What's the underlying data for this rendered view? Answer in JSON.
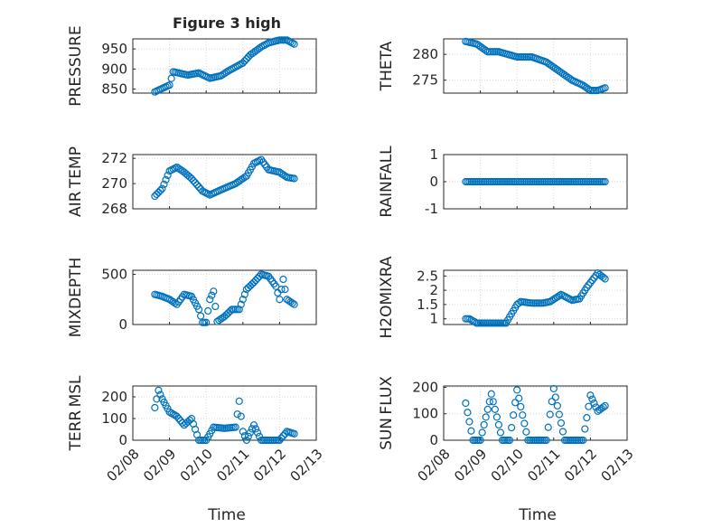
{
  "figure": {
    "title": "Figure 3 high",
    "xlabel": "Time"
  },
  "colors": {
    "marker": "#0072BD",
    "axis": "#262626",
    "grid": "#d9d9d9",
    "background": "#ffffff"
  },
  "chart_data": [
    {
      "type": "scatter",
      "title": "Figure 3 high",
      "ylabel": "PRESSURE",
      "xlabel": "Time",
      "grid": true,
      "marker": "open-circle",
      "x_range": [
        "02/08",
        "02/13"
      ],
      "ylim": [
        840,
        975
      ],
      "yticks": [
        850,
        900,
        950
      ],
      "yticklabels": [
        "850",
        "900",
        "950"
      ],
      "xticks": [
        "02/08",
        "02/09",
        "02/10",
        "02/11",
        "02/12",
        "02/13"
      ],
      "xticklabels_shown": false,
      "series": [
        {
          "x_days": [
            0.6,
            1.0,
            1.1,
            1.5,
            1.8,
            2.1,
            2.4,
            2.6,
            3.0,
            3.2,
            3.5,
            3.7,
            4.0,
            4.2,
            4.4
          ],
          "values": [
            843,
            860,
            893,
            885,
            890,
            877,
            883,
            895,
            915,
            935,
            955,
            965,
            972,
            972,
            962
          ]
        }
      ]
    },
    {
      "type": "scatter",
      "title": "",
      "ylabel": "THETA",
      "grid": true,
      "marker": "open-circle",
      "x_range": [
        "02/08",
        "02/13"
      ],
      "ylim": [
        272.5,
        283
      ],
      "yticks": [
        275,
        280
      ],
      "yticklabels": [
        "275",
        "280"
      ],
      "xticks": [
        "02/08",
        "02/09",
        "02/10",
        "02/11",
        "02/12",
        "02/13"
      ],
      "xticklabels_shown": false,
      "series": [
        {
          "x_days": [
            0.6,
            0.9,
            1.2,
            1.5,
            2.0,
            2.4,
            2.8,
            3.1,
            3.5,
            3.8,
            4.0,
            4.2,
            4.4
          ],
          "values": [
            282.5,
            282,
            280.5,
            280.5,
            279.5,
            279.5,
            278.5,
            277,
            275,
            274,
            273,
            273,
            273.5
          ]
        }
      ]
    },
    {
      "type": "scatter",
      "title": "",
      "ylabel": "AIR_TEMP",
      "ylabel_display": "AIR TEMP",
      "grid": true,
      "marker": "open-circle",
      "x_range": [
        "02/08",
        "02/13"
      ],
      "ylim": [
        268,
        272.3
      ],
      "yticks": [
        268,
        270,
        272
      ],
      "yticklabels": [
        "268",
        "270",
        "272"
      ],
      "xticks": [
        "02/08",
        "02/09",
        "02/10",
        "02/11",
        "02/12",
        "02/13"
      ],
      "xticklabels_shown": false,
      "series": [
        {
          "x_days": [
            0.6,
            0.8,
            1.0,
            1.2,
            1.4,
            1.6,
            1.9,
            2.1,
            2.4,
            2.8,
            3.1,
            3.3,
            3.5,
            3.7,
            4.0,
            4.2,
            4.4
          ],
          "values": [
            269,
            269.6,
            271,
            271.3,
            270.9,
            270.4,
            269.4,
            269.1,
            269.5,
            270,
            270.6,
            271.6,
            271.9,
            271.1,
            270.9,
            270.5,
            270.4
          ]
        }
      ]
    },
    {
      "type": "scatter",
      "title": "",
      "ylabel": "RAINFALL",
      "grid": true,
      "marker": "open-circle",
      "x_range": [
        "02/08",
        "02/13"
      ],
      "ylim": [
        -1,
        1
      ],
      "yticks": [
        -1,
        0,
        1
      ],
      "yticklabels": [
        "-1",
        "0",
        "1"
      ],
      "xticks": [
        "02/08",
        "02/09",
        "02/10",
        "02/11",
        "02/12",
        "02/13"
      ],
      "xticklabels_shown": false,
      "series": [
        {
          "x_days": [
            0.6,
            4.4
          ],
          "values": [
            0,
            0
          ]
        }
      ]
    },
    {
      "type": "scatter",
      "title": "",
      "ylabel": "MIXDEPTH",
      "grid": true,
      "marker": "open-circle",
      "x_range": [
        "02/08",
        "02/13"
      ],
      "ylim": [
        0,
        540
      ],
      "yticks": [
        0,
        500
      ],
      "yticklabels": [
        "0",
        "500"
      ],
      "xticks": [
        "02/08",
        "02/09",
        "02/10",
        "02/11",
        "02/12",
        "02/13"
      ],
      "xticklabels_shown": false,
      "series": [
        {
          "x_days": [
            0.6,
            0.8,
            1.0,
            1.2,
            1.4,
            1.6,
            1.8,
            1.9,
            2.0,
            2.1,
            2.2,
            2.3,
            2.5,
            2.7,
            2.9,
            3.1,
            3.3,
            3.5,
            3.7,
            3.9,
            4.0,
            4.1,
            4.2,
            4.4
          ],
          "values": [
            300,
            280,
            250,
            200,
            300,
            280,
            150,
            20,
            20,
            250,
            330,
            30,
            80,
            150,
            150,
            350,
            420,
            500,
            480,
            380,
            250,
            450,
            250,
            200
          ]
        }
      ]
    },
    {
      "type": "scatter",
      "title": "",
      "ylabel": "H2OMIXRA",
      "grid": true,
      "marker": "open-circle",
      "x_range": [
        "02/08",
        "02/13"
      ],
      "ylim": [
        0.8,
        2.7
      ],
      "yticks": [
        1,
        1.5,
        2,
        2.5
      ],
      "yticklabels": [
        "1",
        "1.5",
        "2",
        "2.5"
      ],
      "xticks": [
        "02/08",
        "02/09",
        "02/10",
        "02/11",
        "02/12",
        "02/13"
      ],
      "xticklabels_shown": false,
      "series": [
        {
          "x_days": [
            0.6,
            0.7,
            0.9,
            1.3,
            1.7,
            2.0,
            2.1,
            2.4,
            2.7,
            2.9,
            3.2,
            3.5,
            3.7,
            3.9,
            4.2,
            4.4
          ],
          "values": [
            1,
            1,
            0.85,
            0.85,
            0.85,
            1.5,
            1.6,
            1.55,
            1.55,
            1.6,
            1.85,
            1.65,
            1.7,
            2.1,
            2.6,
            2.4
          ]
        }
      ]
    },
    {
      "type": "scatter",
      "title": "",
      "ylabel": "TERR_MSL",
      "ylabel_display": "TERR MSL",
      "grid": true,
      "marker": "open-circle",
      "x_range": [
        "02/08",
        "02/13"
      ],
      "ylim": [
        0,
        250
      ],
      "yticks": [
        0,
        100,
        200
      ],
      "yticklabels": [
        "0",
        "100",
        "200"
      ],
      "xticks": [
        "02/08",
        "02/09",
        "02/10",
        "02/11",
        "02/12",
        "02/13"
      ],
      "xticklabels_shown": false,
      "series": [
        {
          "x_days": [
            0.6,
            0.7,
            0.8,
            1.0,
            1.2,
            1.4,
            1.6,
            1.8,
            2.0,
            2.2,
            2.5,
            2.8,
            2.9,
            3.0,
            3.1,
            3.3,
            3.5,
            3.8,
            4.0,
            4.2,
            4.4
          ],
          "values": [
            150,
            230,
            190,
            130,
            110,
            70,
            100,
            0,
            0,
            60,
            55,
            60,
            180,
            40,
            0,
            70,
            0,
            0,
            0,
            40,
            30
          ]
        }
      ]
    },
    {
      "type": "scatter",
      "title": "",
      "ylabel": "SUN_FLUX",
      "ylabel_display": "SUN FLUX",
      "xlabel": "Time",
      "grid": true,
      "marker": "open-circle",
      "x_range": [
        "02/08",
        "02/13"
      ],
      "ylim": [
        0,
        205
      ],
      "yticks": [
        0,
        100,
        200
      ],
      "yticklabels": [
        "0",
        "100",
        "200"
      ],
      "xticks": [
        "02/08",
        "02/09",
        "02/10",
        "02/11",
        "02/12",
        "02/13"
      ],
      "xticklabels": [
        "02/08",
        "02/09",
        "02/10",
        "02/11",
        "02/12",
        "02/13"
      ],
      "series": [
        {
          "x_days": [
            0.6,
            0.8,
            1.0,
            1.3,
            1.6,
            1.8,
            2.0,
            2.3,
            2.6,
            2.8,
            3.0,
            3.3,
            3.6,
            3.8,
            4.0,
            4.2,
            4.4
          ],
          "values": [
            140,
            0,
            0,
            175,
            0,
            0,
            190,
            0,
            0,
            0,
            195,
            0,
            0,
            0,
            170,
            110,
            130
          ]
        }
      ]
    }
  ]
}
